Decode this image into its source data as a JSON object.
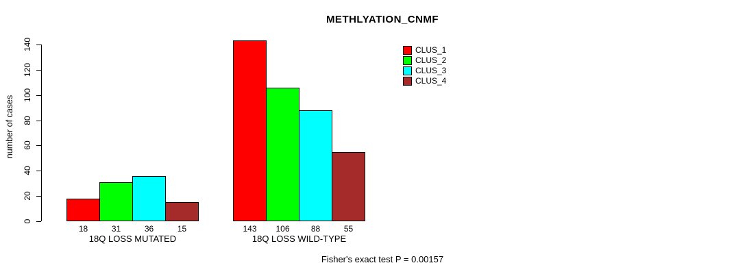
{
  "figure": {
    "title": "METHLYATION_CNMF",
    "caption": "Fisher's exact test P = 0.00157",
    "y_axis_label": "number of cases"
  },
  "legend": {
    "position": "top-right",
    "entries": [
      {
        "label": "CLUS_1",
        "color": "#FF0000"
      },
      {
        "label": "CLUS_2",
        "color": "#00FF00"
      },
      {
        "label": "CLUS_3",
        "color": "#00FFFF"
      },
      {
        "label": "CLUS_4",
        "color": "#A52A2A"
      }
    ]
  },
  "chart_data": {
    "type": "bar",
    "title": "METHLYATION_CNMF",
    "xlabel": "",
    "ylabel": "number of cases",
    "ylim": [
      0,
      145
    ],
    "yticks": [
      0,
      20,
      40,
      60,
      80,
      100,
      120,
      140
    ],
    "grid": false,
    "legend_position": "top-right",
    "categories": [
      "18Q LOSS MUTATED",
      "18Q LOSS WILD-TYPE"
    ],
    "series": [
      {
        "name": "CLUS_1",
        "color": "#FF0000",
        "values": [
          18,
          143
        ]
      },
      {
        "name": "CLUS_2",
        "color": "#00FF00",
        "values": [
          31,
          106
        ]
      },
      {
        "name": "CLUS_3",
        "color": "#00FFFF",
        "values": [
          36,
          88
        ]
      },
      {
        "name": "CLUS_4",
        "color": "#A52A2A",
        "values": [
          15,
          55
        ]
      }
    ],
    "bar_value_labels": [
      [
        18,
        31,
        36,
        15
      ],
      [
        143,
        106,
        88,
        55
      ]
    ],
    "annotation": "Fisher's exact test P = 0.00157"
  }
}
